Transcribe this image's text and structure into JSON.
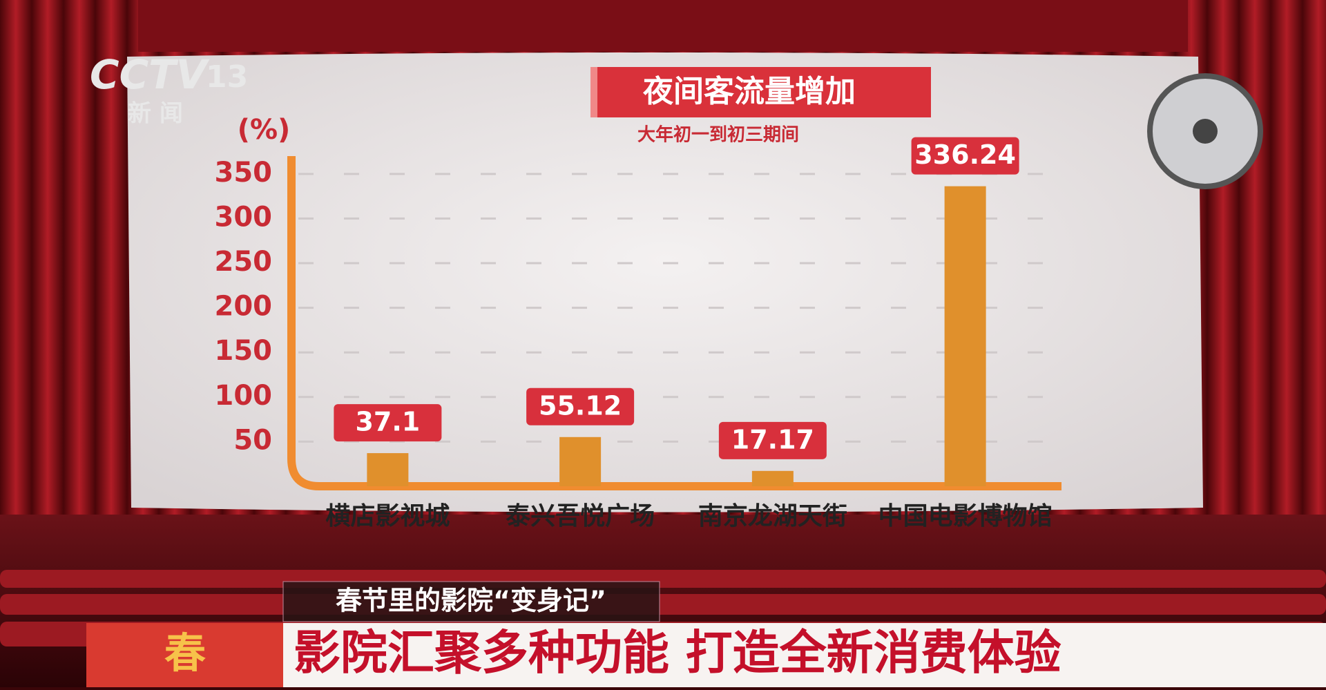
{
  "chart_data": {
    "type": "bar",
    "title": "夜间客流量增加",
    "subtitle": "大年初一到初三期间",
    "y_label": "(%)",
    "categories": [
      "横店影视城",
      "泰兴吾悦广场",
      "南京龙湖天街",
      "中国电影博物馆"
    ],
    "values": [
      37.1,
      55.12,
      17.17,
      336.24
    ],
    "color": "#e0902c",
    "label_color": "#d8303c",
    "ylim": [
      0,
      370
    ],
    "yticks": [
      50,
      100,
      150,
      200,
      250,
      300,
      350
    ],
    "grid": true
  },
  "overlay": {
    "channel": "CCTV",
    "channel_number": "13",
    "channel_sub": "新 闻",
    "program_tag": "春节里的影院“变身记”",
    "headline": "影院汇聚多种功能  打造全新消费体验",
    "badge": "春"
  }
}
